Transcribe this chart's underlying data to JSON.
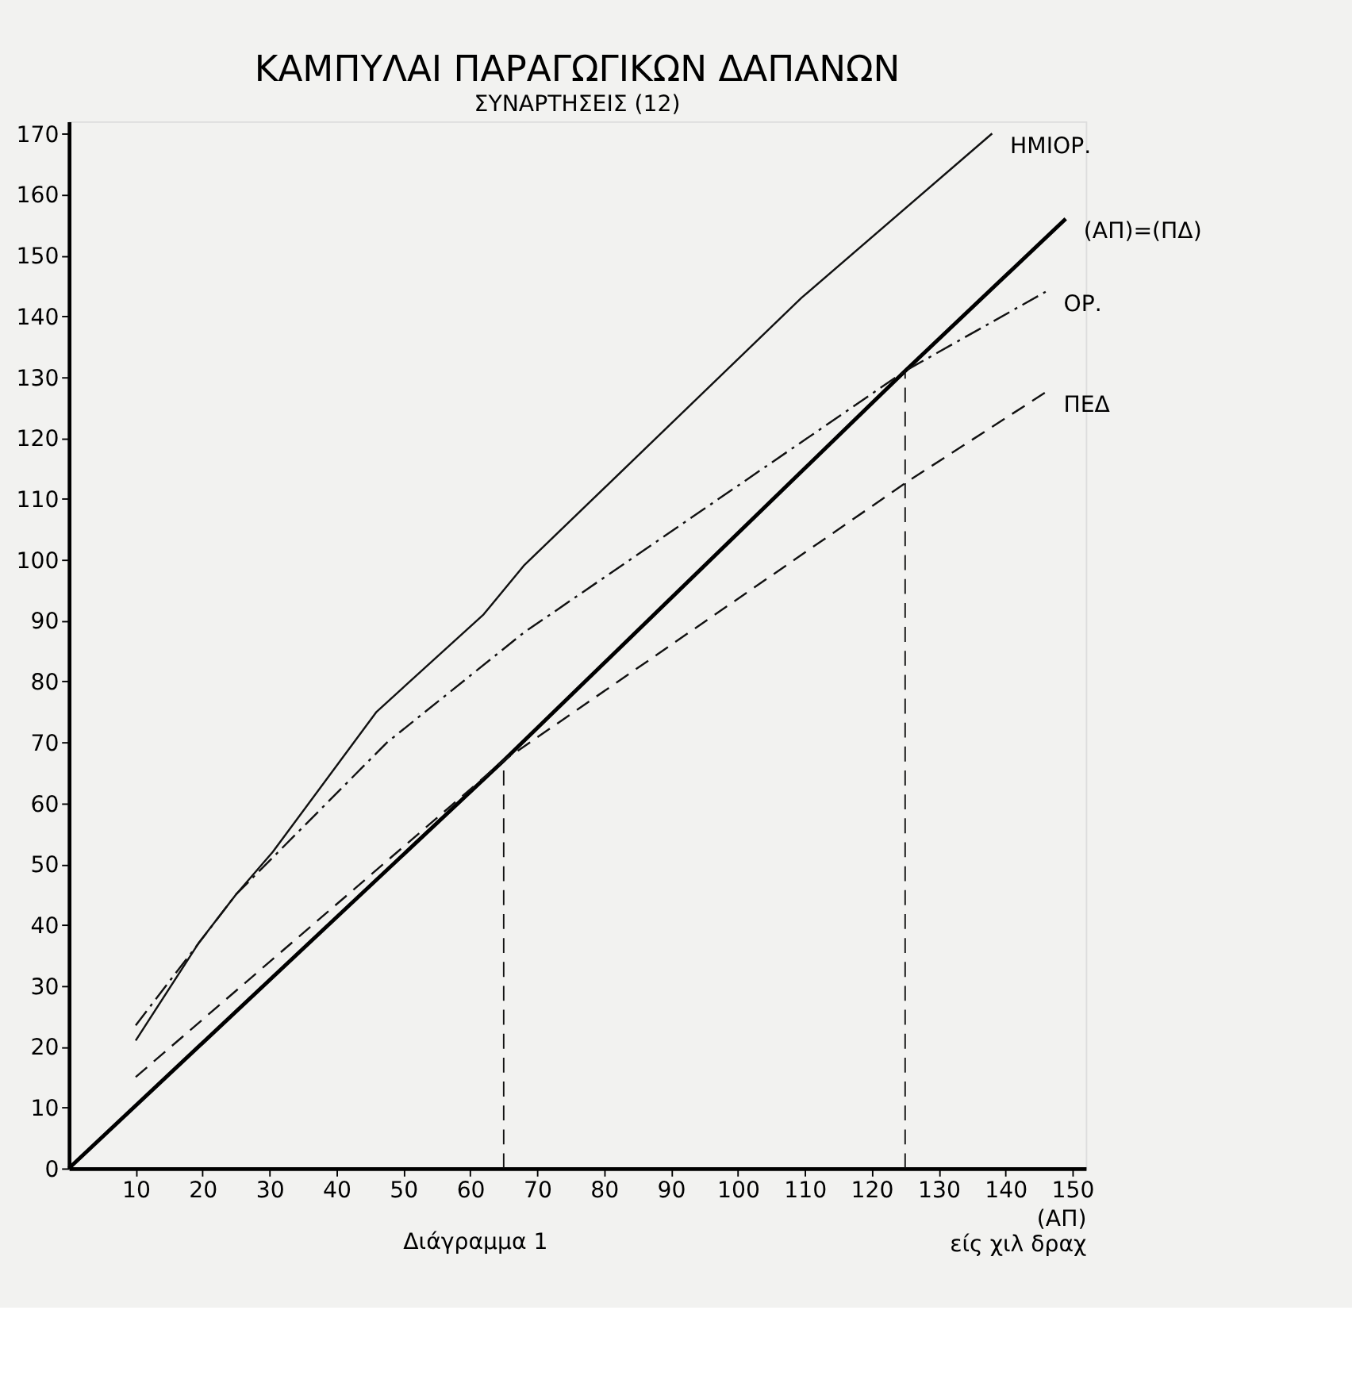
{
  "chart_data": {
    "type": "line",
    "title": "ΚΑΜΠΥΛΑΙ ΠΑΡΑΓΩΓΙΚΩΝ ΔΑΠΑΝΩΝ",
    "subtitle": "ΣΥΝΑΡΤΗΣΕΙΣ (12)",
    "xlabel": "(ΑΠ)\nείς χιλ δραχ",
    "xlim": [
      0,
      152
    ],
    "xticks": [
      10,
      20,
      30,
      40,
      50,
      60,
      70,
      80,
      90,
      100,
      110,
      120,
      130,
      140,
      150
    ],
    "ylim": [
      0,
      172
    ],
    "yticks": [
      0,
      10,
      20,
      30,
      40,
      50,
      60,
      70,
      80,
      90,
      100,
      110,
      120,
      130,
      140,
      150,
      160,
      170
    ],
    "grid": false,
    "marker": "none",
    "annotations": [
      "Διάγραμμα 1"
    ],
    "series": [
      {
        "name": "ΗΜΙΟΡ.",
        "color": "#111111",
        "line_style": "solid",
        "x": [
          10,
          19.4,
          25,
          30.5,
          46,
          62,
          68,
          109.5,
          138
        ],
        "values": [
          21,
          37,
          45,
          52,
          75,
          91,
          99,
          143,
          170
        ]
      },
      {
        "name": "(ΑΠ)=(ΠΔ)",
        "color": "#000000",
        "line_style": "solid",
        "x": [
          0,
          65,
          125,
          149
        ],
        "values": [
          0,
          67,
          131,
          156
        ]
      },
      {
        "name": "ΟΡ.",
        "color": "#111111",
        "line_style": "dashdot",
        "x": [
          10,
          25,
          47.6,
          68,
          125,
          146
        ],
        "values": [
          23.5,
          45,
          70,
          88,
          131,
          144
        ]
      },
      {
        "name": "ΠΕΔ",
        "color": "#111111",
        "line_style": "dashed",
        "x": [
          10,
          65,
          125.6,
          146
        ],
        "values": [
          15,
          67,
          113,
          127.5
        ]
      },
      {
        "color": "#111111",
        "line_style": "dashed",
        "x": [
          65,
          65
        ],
        "values": [
          0,
          67
        ]
      },
      {
        "color": "#111111",
        "line_style": "dashed",
        "x": [
          125,
          125
        ],
        "values": [
          0,
          131
        ]
      }
    ]
  }
}
